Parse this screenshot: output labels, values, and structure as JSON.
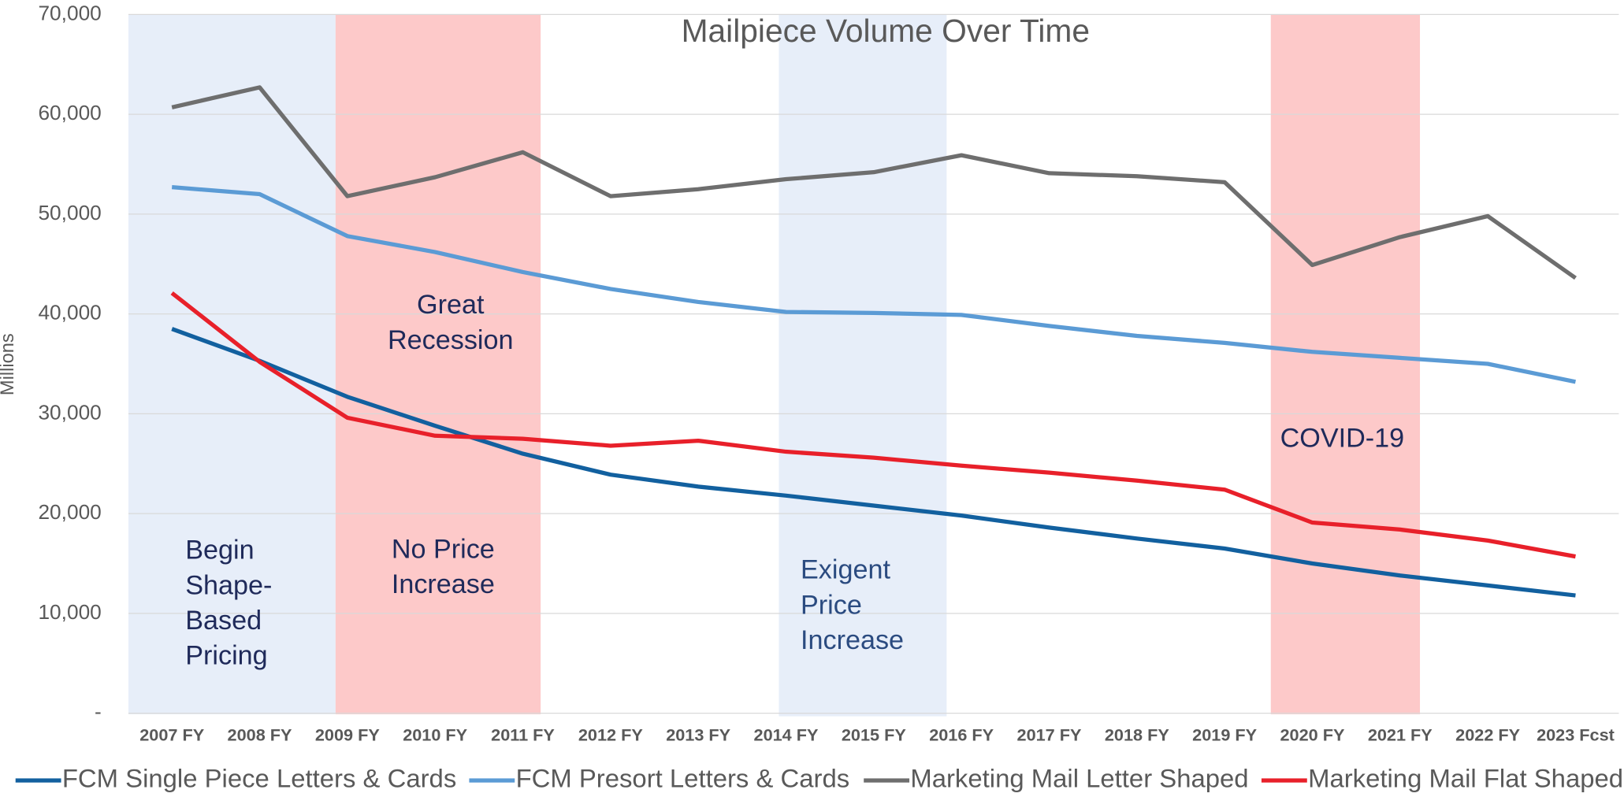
{
  "chart_data": {
    "type": "line",
    "title": "Mailpiece Volume Over Time",
    "ylabel": "Millions",
    "categories": [
      "2007 FY",
      "2008 FY",
      "2009 FY",
      "2010 FY",
      "2011 FY",
      "2012 FY",
      "2013 FY",
      "2014 FY",
      "2015 FY",
      "2016 FY",
      "2017 FY",
      "2018 FY",
      "2019 FY",
      "2020 FY",
      "2021 FY",
      "2022 FY",
      "2023 Fcst"
    ],
    "series": [
      {
        "name": "FCM Single Piece Letters & Cards",
        "color": "#12609f",
        "values": [
          38500,
          35300,
          31700,
          28800,
          26000,
          23900,
          22700,
          21800,
          20800,
          19800,
          18600,
          17500,
          16500,
          15000,
          13800,
          12800,
          11800
        ]
      },
      {
        "name": "FCM Presort Letters & Cards",
        "color": "#5b9bd5",
        "values": [
          52700,
          52000,
          47800,
          46200,
          44200,
          42500,
          41200,
          40200,
          40100,
          39900,
          38800,
          37800,
          37100,
          36200,
          35600,
          35000,
          33200
        ]
      },
      {
        "name": "Marketing Mail Letter Shaped",
        "color": "#6e6e6e",
        "values": [
          60700,
          62700,
          51800,
          53700,
          56200,
          51800,
          52500,
          53500,
          54200,
          55900,
          54100,
          53800,
          53200,
          44900,
          47700,
          49800,
          43600
        ]
      },
      {
        "name": "Marketing Mail Flat Shaped",
        "color": "#e8202a",
        "values": [
          42100,
          35200,
          29600,
          27800,
          27500,
          26800,
          27300,
          26200,
          25600,
          24800,
          24100,
          23300,
          22400,
          19100,
          18400,
          17300,
          15700
        ]
      }
    ],
    "ylim": [
      0,
      70000
    ],
    "yticks": [
      {
        "value": 0,
        "label": "-"
      },
      {
        "value": 10000,
        "label": "10,000"
      },
      {
        "value": 20000,
        "label": "20,000"
      },
      {
        "value": 30000,
        "label": "30,000"
      },
      {
        "value": 40000,
        "label": "40,000"
      },
      {
        "value": 50000,
        "label": "50,000"
      },
      {
        "value": 60000,
        "label": "60,000"
      },
      {
        "value": 70000,
        "label": "70,000"
      }
    ],
    "grid": true,
    "legend": "bottom",
    "annotations": [
      {
        "lines": [
          "Begin",
          "Shape-",
          "Based",
          "Pricing"
        ]
      },
      {
        "lines": [
          "Great",
          "Recession"
        ]
      },
      {
        "lines": [
          "No Price",
          "Increase"
        ]
      },
      {
        "lines": [
          "Exigent",
          "Price",
          "Increase"
        ]
      },
      {
        "lines": [
          "COVID-19"
        ]
      }
    ]
  }
}
